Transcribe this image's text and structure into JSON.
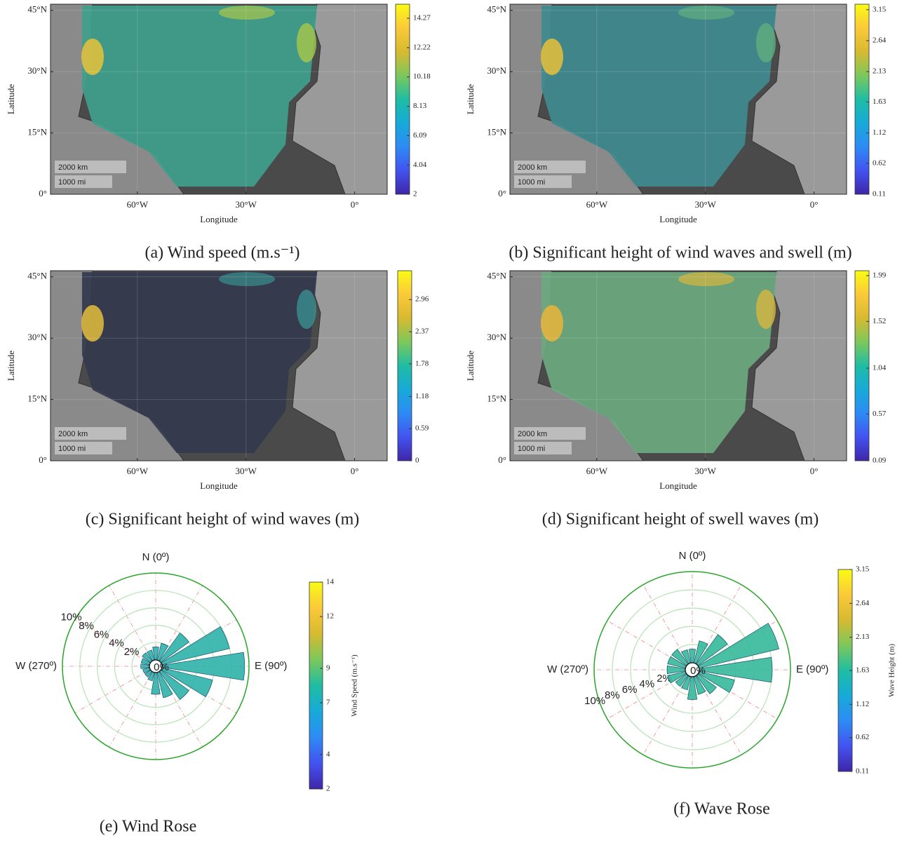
{
  "colormap": [
    "#3e26a8",
    "#4353f0",
    "#2d8bf5",
    "#17aad8",
    "#1fbda3",
    "#7cc85b",
    "#d7ba30",
    "#fbc93a",
    "#f9fb14"
  ],
  "chart_data": [
    {
      "type": "map",
      "caption": "(a) Wind speed (m.s⁻¹)",
      "xlabel": "Longitude",
      "ylabel": "Latitude",
      "xlim": [
        -84,
        9
      ],
      "ylim": [
        0,
        46.5
      ],
      "xticks": [
        {
          "value": -60,
          "label": "60°W"
        },
        {
          "value": -30,
          "label": "30°W"
        },
        {
          "value": 0,
          "label": "0°"
        }
      ],
      "yticks": [
        {
          "value": 0,
          "label": "0°"
        },
        {
          "value": 15,
          "label": "15°N"
        },
        {
          "value": 30,
          "label": "30°N"
        },
        {
          "value": 45,
          "label": "45°N"
        }
      ],
      "scale_bar": [
        "2000 km",
        "1000 mi"
      ],
      "clim": [
        2,
        15.25
      ],
      "cticks": [
        2,
        4.04,
        6.09,
        8.13,
        10.18,
        12.22,
        14.27
      ]
    },
    {
      "type": "map",
      "caption": "(b) Significant height of wind waves and swell (m)",
      "xlabel": "Longitude",
      "ylabel": "Latitude",
      "xlim": [
        -84,
        9
      ],
      "ylim": [
        0,
        46.5
      ],
      "xticks": [
        {
          "value": -60,
          "label": "60°W"
        },
        {
          "value": -30,
          "label": "30°W"
        },
        {
          "value": 0,
          "label": "0°"
        }
      ],
      "yticks": [
        {
          "value": 0,
          "label": "0°"
        },
        {
          "value": 15,
          "label": "15°N"
        },
        {
          "value": 30,
          "label": "30°N"
        },
        {
          "value": 45,
          "label": "45°N"
        }
      ],
      "scale_bar": [
        "2000 km",
        "1000 mi"
      ],
      "clim": [
        0.11,
        3.24
      ],
      "cticks": [
        0.11,
        0.62,
        1.12,
        1.63,
        2.13,
        2.64,
        3.15
      ]
    },
    {
      "type": "map",
      "caption": "(c) Significant height of wind waves (m)",
      "xlabel": "Longitude",
      "ylabel": "Latitude",
      "xlim": [
        -84,
        9
      ],
      "ylim": [
        0,
        46.5
      ],
      "xticks": [
        {
          "value": -60,
          "label": "60°W"
        },
        {
          "value": -30,
          "label": "30°W"
        },
        {
          "value": 0,
          "label": "0°"
        }
      ],
      "yticks": [
        {
          "value": 0,
          "label": "0°"
        },
        {
          "value": 15,
          "label": "15°N"
        },
        {
          "value": 30,
          "label": "30°N"
        },
        {
          "value": 45,
          "label": "45°N"
        }
      ],
      "scale_bar": [
        "2000 km",
        "1000 mi"
      ],
      "clim": [
        0,
        3.49
      ],
      "cticks": [
        0,
        0.59,
        1.18,
        1.78,
        2.37,
        2.96
      ]
    },
    {
      "type": "map",
      "caption": "(d) Significant height of swell waves (m)",
      "xlabel": "Longitude",
      "ylabel": "Latitude",
      "xlim": [
        -84,
        9
      ],
      "ylim": [
        0,
        46.5
      ],
      "xticks": [
        {
          "value": -60,
          "label": "60°W"
        },
        {
          "value": -30,
          "label": "30°W"
        },
        {
          "value": 0,
          "label": "0°"
        }
      ],
      "yticks": [
        {
          "value": 0,
          "label": "0°"
        },
        {
          "value": 15,
          "label": "15°N"
        },
        {
          "value": 30,
          "label": "30°N"
        },
        {
          "value": 45,
          "label": "45°N"
        }
      ],
      "scale_bar": [
        "2000 km",
        "1000 mi"
      ],
      "clim": [
        0.09,
        2.04
      ],
      "cticks": [
        0.09,
        0.57,
        1.04,
        1.52,
        1.99
      ]
    },
    {
      "type": "rose",
      "caption": "(e) Wind Rose",
      "center_label": "0%",
      "direction_labels": [
        {
          "value": 0,
          "label": "N (0º)"
        },
        {
          "value": 90,
          "label": "E (90º)"
        },
        {
          "value": 270,
          "label": "W (270º)"
        }
      ],
      "rlim": [
        0,
        10
      ],
      "rticks": [
        {
          "value": 2,
          "label": "2%"
        },
        {
          "value": 4,
          "label": "4%"
        },
        {
          "value": 6,
          "label": "6%"
        },
        {
          "value": 8,
          "label": "8%"
        },
        {
          "value": 10,
          "label": "10%"
        }
      ],
      "directions": [
        0,
        22.5,
        45,
        67.5,
        90,
        112.5,
        135,
        157.5,
        180,
        202.5,
        225,
        247.5,
        270,
        292.5,
        315,
        337.5
      ],
      "values": [
        1.5,
        2,
        4,
        8,
        9.5,
        6,
        4,
        3,
        2.5,
        1,
        0.8,
        0.8,
        1,
        1,
        1.2,
        1.2
      ],
      "color": "#2fb3a8",
      "colorbar_label": "Wind Speed (m.s⁻¹)",
      "clim": [
        2,
        14
      ],
      "cticks": [
        2,
        4,
        7,
        9,
        12,
        14
      ]
    },
    {
      "type": "rose",
      "caption": "(f) Wave Rose",
      "center_label": "0%",
      "direction_labels": [
        {
          "value": 0,
          "label": "N (0º)"
        },
        {
          "value": 90,
          "label": "E (90º)"
        },
        {
          "value": 270,
          "label": "W (270º)"
        }
      ],
      "rlim": [
        0,
        10
      ],
      "rticks": [
        {
          "value": 2,
          "label": "2%"
        },
        {
          "value": 4,
          "label": "4%"
        },
        {
          "value": 6,
          "label": "6%"
        },
        {
          "value": 8,
          "label": "8%"
        },
        {
          "value": 10,
          "label": "10%"
        }
      ],
      "directions": [
        0,
        22.5,
        45,
        67.5,
        90,
        112.5,
        135,
        157.5,
        180,
        202.5,
        225,
        247.5,
        270,
        292.5,
        315,
        337.5
      ],
      "values": [
        1.5,
        2.5,
        4,
        9,
        8,
        4,
        2.5,
        2,
        2.5,
        1.5,
        1.5,
        2,
        2,
        2,
        2,
        1.5
      ],
      "color": "#35b99a",
      "colorbar_label": "Wave Height (m)",
      "clim": [
        0.11,
        3.15
      ],
      "cticks": [
        0.11,
        0.62,
        1.12,
        1.63,
        2.13,
        2.64,
        3.15
      ]
    }
  ]
}
